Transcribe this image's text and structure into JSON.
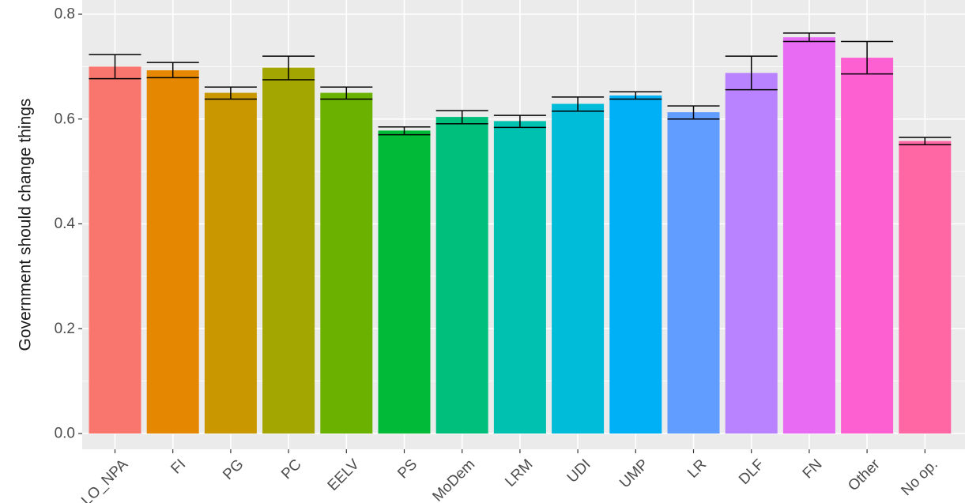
{
  "chart_data": {
    "type": "bar",
    "title": "",
    "xlabel": "",
    "ylabel": "Government should change things",
    "ylim": [
      0,
      0.8
    ],
    "yticks": [
      0.0,
      0.2,
      0.4,
      0.6,
      0.8
    ],
    "ytick_labels": [
      "0.0",
      "0.2",
      "0.4",
      "0.6",
      "0.8"
    ],
    "grid": true,
    "legend": "none",
    "error_bars": true,
    "categories": [
      "LO_NPA",
      "FI",
      "PG",
      "PC",
      "EELV",
      "PS",
      "MoDem",
      "LRM",
      "UDI",
      "UMP",
      "LR",
      "DLF",
      "FN",
      "Other",
      "No op."
    ],
    "values": [
      0.7,
      0.693,
      0.65,
      0.698,
      0.65,
      0.578,
      0.604,
      0.596,
      0.629,
      0.645,
      0.613,
      0.688,
      0.756,
      0.717,
      0.558
    ],
    "error_low": [
      0.677,
      0.679,
      0.638,
      0.675,
      0.638,
      0.57,
      0.591,
      0.584,
      0.615,
      0.638,
      0.6,
      0.656,
      0.748,
      0.686,
      0.551
    ],
    "error_high": [
      0.723,
      0.708,
      0.661,
      0.72,
      0.661,
      0.585,
      0.616,
      0.607,
      0.642,
      0.652,
      0.625,
      0.72,
      0.764,
      0.748,
      0.565
    ],
    "colors": [
      "#F8766D",
      "#E58700",
      "#C99800",
      "#A3A500",
      "#6BB100",
      "#00BA38",
      "#00BF7D",
      "#00C0AF",
      "#00BCD8",
      "#00B0F6",
      "#619CFF",
      "#B983FF",
      "#E76BF3",
      "#FD61D1",
      "#FF67A4"
    ]
  }
}
